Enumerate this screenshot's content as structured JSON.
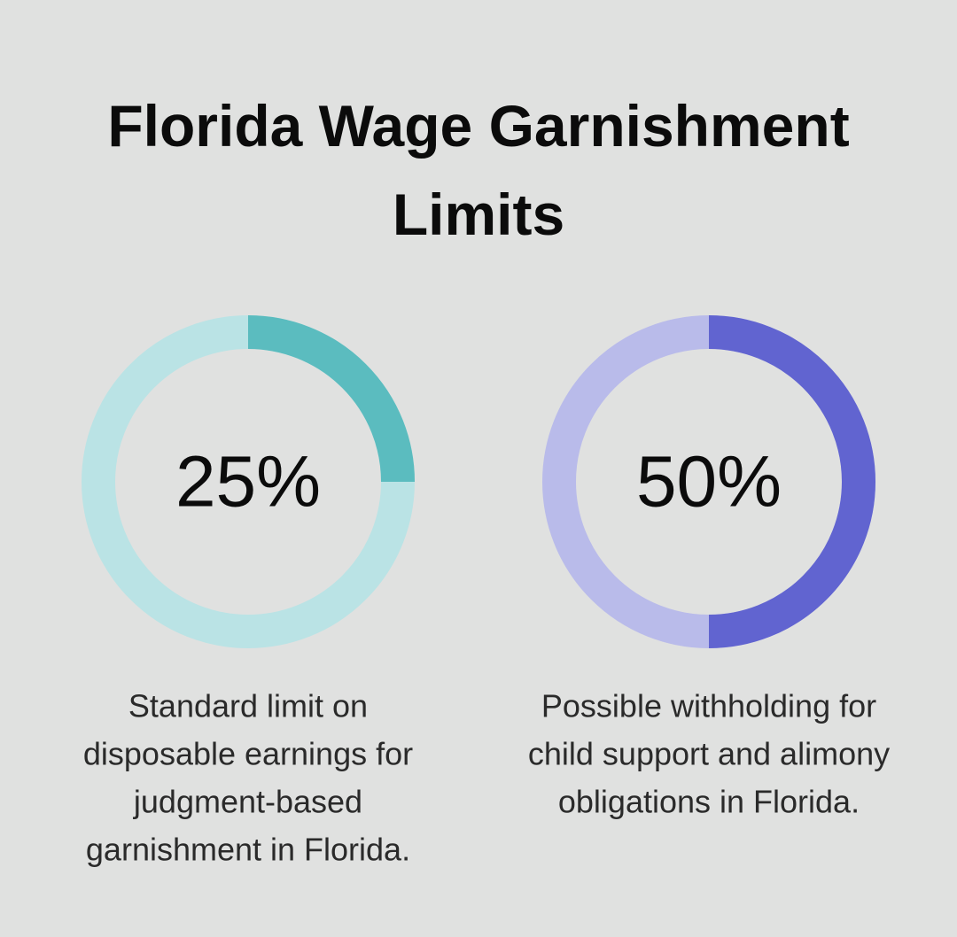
{
  "title": "Florida Wage Garnishment Limits",
  "chart_data": [
    {
      "type": "donut",
      "values": [
        25
      ],
      "value_labels": [
        "25%"
      ],
      "color": "#5bbcbf",
      "track_color": "#bae3e5",
      "caption_lines": [
        "Standard limit on",
        "disposable earnings for",
        "judgment-based",
        "garnishment in Florida."
      ]
    },
    {
      "type": "donut",
      "values": [
        50
      ],
      "value_labels": [
        "50%"
      ],
      "color": "#6164d0",
      "track_color": "#b9bbea",
      "caption_lines": [
        "Possible withholding for",
        "child support and alimony",
        "obligations in Florida."
      ]
    }
  ]
}
